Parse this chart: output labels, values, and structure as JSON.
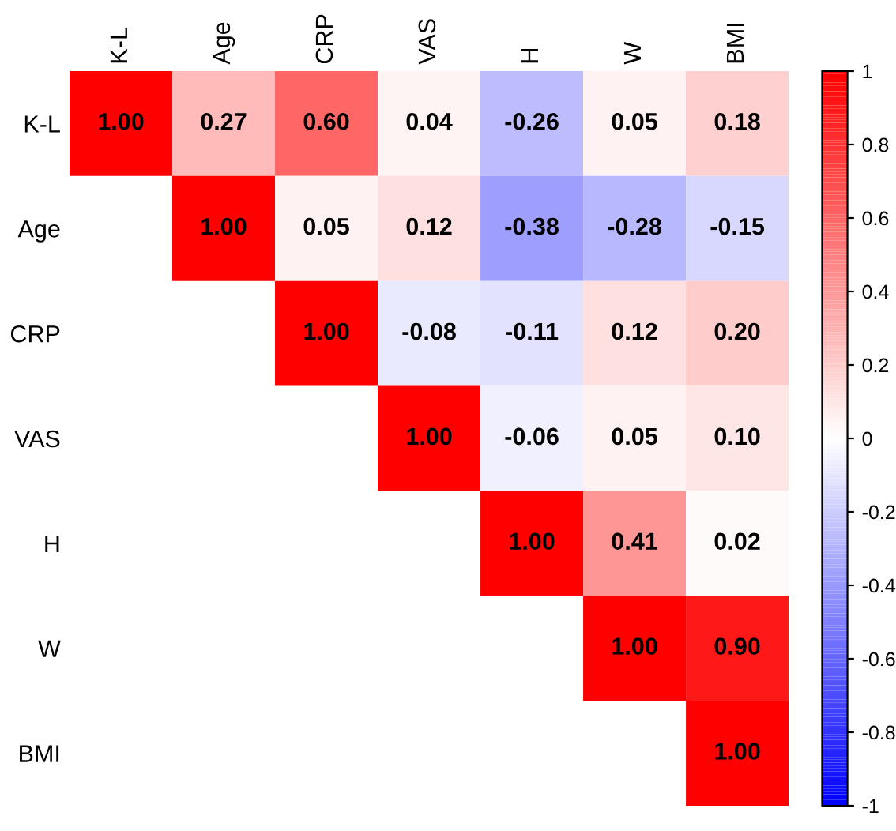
{
  "chart_data": {
    "type": "heatmap",
    "categories": [
      "K-L",
      "Age",
      "CRP",
      "VAS",
      "H",
      "W",
      "BMI"
    ],
    "y_categories": [
      "K-L",
      "Age",
      "CRP",
      "VAS",
      "H",
      "W",
      "BMI"
    ],
    "cells": [
      [
        1.0,
        0.27,
        0.6,
        0.04,
        -0.26,
        0.05,
        0.18
      ],
      [
        null,
        1.0,
        0.05,
        0.12,
        -0.38,
        -0.28,
        -0.15
      ],
      [
        null,
        null,
        1.0,
        -0.08,
        -0.11,
        0.12,
        0.2
      ],
      [
        null,
        null,
        null,
        1.0,
        -0.06,
        0.05,
        0.1
      ],
      [
        null,
        null,
        null,
        null,
        1.0,
        0.41,
        0.02
      ],
      [
        null,
        null,
        null,
        null,
        null,
        1.0,
        0.9
      ],
      [
        null,
        null,
        null,
        null,
        null,
        null,
        1.0
      ]
    ],
    "cell_labels": [
      [
        "1.00",
        "0.27",
        "0.60",
        "0.04",
        "-0.26",
        "0.05",
        "0.18"
      ],
      [
        null,
        "1.00",
        "0.05",
        "0.12",
        "-0.38",
        "-0.28",
        "-0.15"
      ],
      [
        null,
        null,
        "1.00",
        "-0.08",
        "-0.11",
        "0.12",
        "0.20"
      ],
      [
        null,
        null,
        null,
        "1.00",
        "-0.06",
        "0.05",
        "0.10"
      ],
      [
        null,
        null,
        null,
        null,
        "1.00",
        "0.41",
        "0.02"
      ],
      [
        null,
        null,
        null,
        null,
        null,
        "1.00",
        "0.90"
      ],
      [
        null,
        null,
        null,
        null,
        null,
        null,
        "1.00"
      ]
    ],
    "clim": [
      -1,
      1
    ],
    "cticks": [
      -1,
      -0.8,
      -0.6,
      -0.4,
      -0.2,
      0,
      0.2,
      0.4,
      0.6,
      0.8,
      1
    ]
  }
}
